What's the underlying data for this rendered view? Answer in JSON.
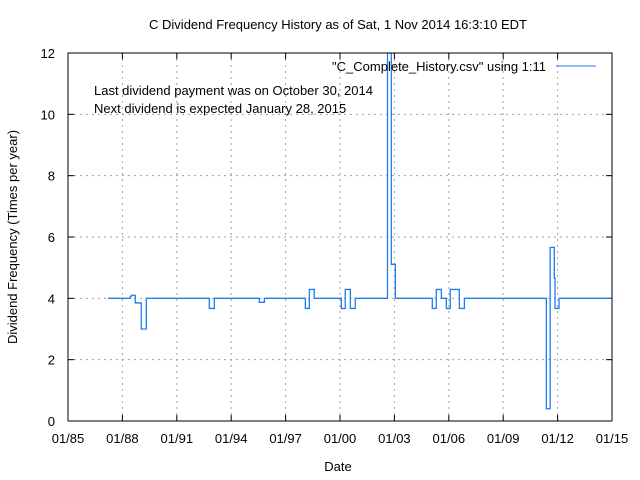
{
  "chart_data": {
    "type": "line",
    "step": "post",
    "title": "C Dividend Frequency History as of Sat, 1 Nov 2014 16:3:10 EDT",
    "xlabel": "Date",
    "ylabel": "Dividend Frequency (Times per year)",
    "xlim": [
      1985,
      2015
    ],
    "ylim": [
      0,
      12
    ],
    "x_ticks": [
      1985,
      1988,
      1991,
      1994,
      1997,
      2000,
      2003,
      2006,
      2009,
      2012,
      2015
    ],
    "x_tick_labels": [
      "01/85",
      "01/88",
      "01/91",
      "01/94",
      "01/97",
      "01/00",
      "01/03",
      "01/06",
      "01/09",
      "01/12",
      "01/15"
    ],
    "y_ticks": [
      0,
      2,
      4,
      6,
      8,
      10,
      12
    ],
    "y_tick_labels": [
      "0",
      "2",
      "4",
      "6",
      "8",
      "10",
      "12"
    ],
    "grid": true,
    "legend_position": "top-right",
    "annotations": [
      "Last dividend payment was on October 30, 2014",
      "Next dividend is expected January 28, 2015"
    ],
    "series": [
      {
        "name": "\"C_Complete_History.csv\" using 1:11",
        "color": "#1f7fe8",
        "x": [
          1987.21,
          1988.44,
          1988.49,
          1988.71,
          1989.04,
          1989.32,
          1992.79,
          1993.07,
          1995.55,
          1995.83,
          1998.09,
          1998.31,
          1998.58,
          2000.07,
          2000.29,
          2000.57,
          2000.84,
          2002.62,
          2002.83,
          2003.05,
          2005.09,
          2005.31,
          2005.59,
          2005.86,
          2006.08,
          2006.58,
          2006.86,
          2011.38,
          2011.59,
          2011.82,
          2011.86,
          2012.08,
          2015.0
        ],
        "y": [
          4,
          4.06,
          4.1,
          3.85,
          3,
          4,
          3.67,
          4,
          3.87,
          4,
          3.67,
          4.29,
          4,
          3.67,
          4.29,
          3.67,
          4,
          12,
          5.11,
          4,
          3.67,
          4.29,
          4,
          3.67,
          4.29,
          3.67,
          4,
          0.4,
          5.66,
          4.65,
          3.67,
          4,
          4
        ]
      }
    ]
  }
}
